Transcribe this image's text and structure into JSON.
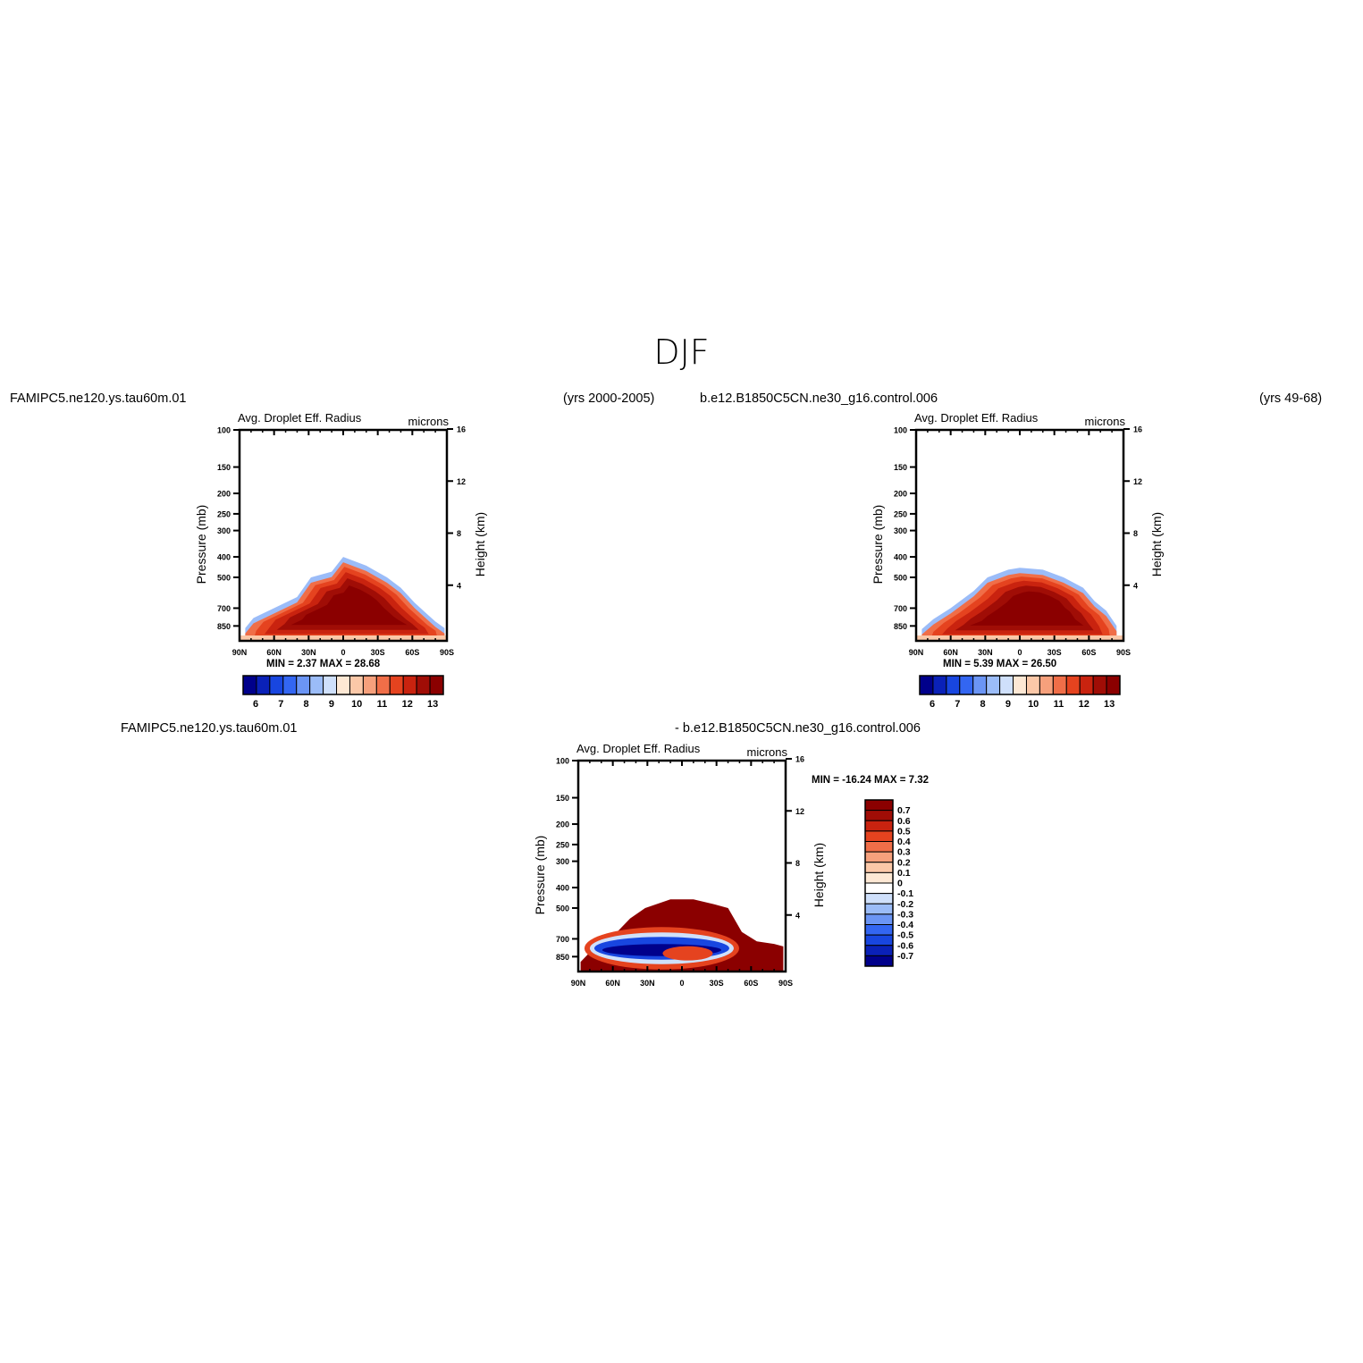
{
  "page_title": "DJF",
  "colors": {
    "negative": [
      "#00008b",
      "#0a21b8",
      "#1846e0",
      "#3366f2",
      "#6b95f5",
      "#9bbcf8",
      "#cfe0fb"
    ],
    "positive": [
      "#fde8d4",
      "#fbc8a8",
      "#f6a07c",
      "#f06e48",
      "#e5431f",
      "#c9230f",
      "#a00d06",
      "#8b0000"
    ]
  },
  "panels": [
    {
      "left_caption": "FAMIPC5.ne120.ys.tau60m.01",
      "right_caption": "(yrs 2000-2005)",
      "field": "Avg. Droplet Eff. Radius",
      "units": "microns",
      "min_max": "MIN =     2.37   MAX =    28.68"
    },
    {
      "left_caption": "b.e12.B1850C5CN.ne30_g16.control.006",
      "right_caption": "(yrs 49-68)",
      "field": "Avg. Droplet Eff. Radius",
      "units": "microns",
      "min_max": "MIN =     5.39   MAX =    26.50"
    },
    {
      "left_caption": "FAMIPC5.ne120.ys.tau60m.01",
      "right_caption": "- b.e12.B1850C5CN.ne30_g16.control.006",
      "field": "Avg. Droplet Eff. Radius",
      "units": "microns",
      "min_max": "MIN =  -16.24   MAX =     7.32"
    }
  ],
  "chart_data": [
    {
      "type": "heatmap",
      "title": "Avg. Droplet Eff. Radius",
      "units": "microns",
      "ylabel": "Pressure (mb)",
      "ylabel_right": "Height (km)",
      "x_ticks": [
        "90N",
        "60N",
        "30N",
        "0",
        "30S",
        "60S",
        "90S"
      ],
      "y_ticks": [
        100,
        150,
        200,
        250,
        300,
        400,
        500,
        700,
        850
      ],
      "y_right_ticks": [
        4,
        8,
        12,
        16
      ],
      "x_range": [
        90,
        -90
      ],
      "y_range": [
        100,
        1000
      ],
      "y_scale": "log",
      "min": 2.37,
      "max": 28.68,
      "colorbar_labels": [
        "6",
        "7",
        "8",
        "9",
        "10",
        "11",
        "12",
        "13"
      ],
      "cloud_top_mb": [
        [
          85,
          870
        ],
        [
          78,
          780
        ],
        [
          60,
          700
        ],
        [
          40,
          620
        ],
        [
          28,
          500
        ],
        [
          10,
          470
        ],
        [
          0,
          400
        ],
        [
          -20,
          440
        ],
        [
          -38,
          500
        ],
        [
          -50,
          560
        ],
        [
          -62,
          660
        ],
        [
          -72,
          740
        ],
        [
          -80,
          810
        ],
        [
          -88,
          870
        ]
      ],
      "core": {
        "lat": -10,
        "p": 690,
        "value": 13
      }
    },
    {
      "type": "heatmap",
      "title": "Avg. Droplet Eff. Radius",
      "units": "microns",
      "ylabel": "Pressure (mb)",
      "ylabel_right": "Height (km)",
      "x_ticks": [
        "90N",
        "60N",
        "30N",
        "0",
        "30S",
        "60S",
        "90S"
      ],
      "y_ticks": [
        100,
        150,
        200,
        250,
        300,
        400,
        500,
        700,
        850
      ],
      "y_right_ticks": [
        4,
        8,
        12,
        16
      ],
      "x_range": [
        90,
        -90
      ],
      "y_range": [
        100,
        1000
      ],
      "y_scale": "log",
      "min": 5.39,
      "max": 26.5,
      "colorbar_labels": [
        "6",
        "7",
        "8",
        "9",
        "10",
        "11",
        "12",
        "13"
      ],
      "cloud_top_mb": [
        [
          85,
          880
        ],
        [
          75,
          790
        ],
        [
          60,
          700
        ],
        [
          40,
          580
        ],
        [
          28,
          500
        ],
        [
          10,
          460
        ],
        [
          0,
          450
        ],
        [
          -20,
          460
        ],
        [
          -38,
          500
        ],
        [
          -55,
          560
        ],
        [
          -65,
          650
        ],
        [
          -75,
          720
        ],
        [
          -84,
          850
        ]
      ],
      "core": {
        "lat": -15,
        "p": 700,
        "value": 13
      }
    },
    {
      "type": "heatmap",
      "title": "Avg. Droplet Eff. Radius",
      "units": "microns",
      "ylabel": "Pressure (mb)",
      "ylabel_right": "Height (km)",
      "x_ticks": [
        "90N",
        "60N",
        "30N",
        "0",
        "30S",
        "60S",
        "90S"
      ],
      "y_ticks": [
        100,
        150,
        200,
        250,
        300,
        400,
        500,
        700,
        850
      ],
      "y_right_ticks": [
        4,
        8,
        12,
        16
      ],
      "x_range": [
        90,
        -90
      ],
      "y_range": [
        100,
        1000
      ],
      "y_scale": "log",
      "min": -16.24,
      "max": 7.32,
      "colorbar_labels": [
        "0.7",
        "0.6",
        "0.5",
        "0.4",
        "0.3",
        "0.2",
        "0.1",
        "0",
        "-0.1",
        "-0.2",
        "-0.3",
        "-0.4",
        "-0.5",
        "-0.6",
        "-0.7"
      ],
      "cloud_top_mb": [
        [
          88,
          900
        ],
        [
          75,
          760
        ],
        [
          62,
          700
        ],
        [
          45,
          560
        ],
        [
          32,
          500
        ],
        [
          10,
          455
        ],
        [
          -10,
          455
        ],
        [
          -28,
          480
        ],
        [
          -40,
          500
        ],
        [
          -52,
          650
        ],
        [
          -65,
          720
        ],
        [
          -80,
          740
        ],
        [
          -88,
          760
        ]
      ],
      "negative_band": {
        "lat_from": 80,
        "lat_to": -45,
        "p_top": 640,
        "p_bottom": 870
      }
    }
  ]
}
